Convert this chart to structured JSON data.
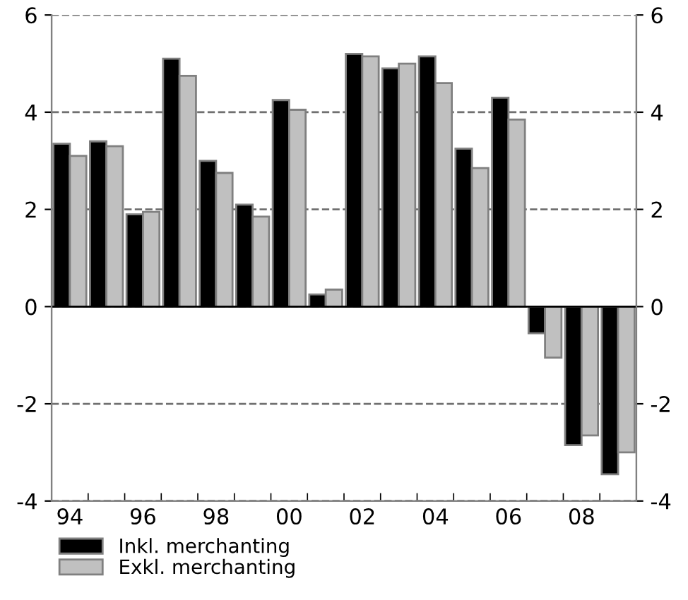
{
  "chart_data": {
    "type": "bar",
    "categories": [
      "94",
      null,
      "96",
      null,
      "98",
      null,
      "00",
      null,
      "02",
      null,
      "04",
      null,
      "06",
      null,
      "08",
      null
    ],
    "series": [
      {
        "name": "Inkl. merchanting",
        "color": "#000000",
        "values": [
          3.35,
          3.4,
          1.9,
          5.1,
          3.0,
          2.1,
          4.25,
          0.25,
          5.2,
          4.9,
          5.15,
          3.25,
          4.3,
          -0.55,
          -2.85,
          -3.45
        ]
      },
      {
        "name": "Exkl. merchanting",
        "color": "#c0c0c0",
        "values": [
          3.1,
          3.3,
          1.95,
          4.75,
          2.75,
          1.85,
          4.05,
          0.35,
          5.15,
          5.0,
          4.6,
          2.85,
          3.85,
          -1.05,
          -2.65,
          -3.0
        ]
      }
    ],
    "ylim": [
      -4,
      6
    ],
    "yticks": [
      -4,
      -2,
      0,
      2,
      4,
      6
    ],
    "y2lim": [
      -4,
      6
    ],
    "y2ticks": [
      -4,
      -2,
      0,
      2,
      4,
      6
    ],
    "grid": "y",
    "legend": "bottom"
  }
}
